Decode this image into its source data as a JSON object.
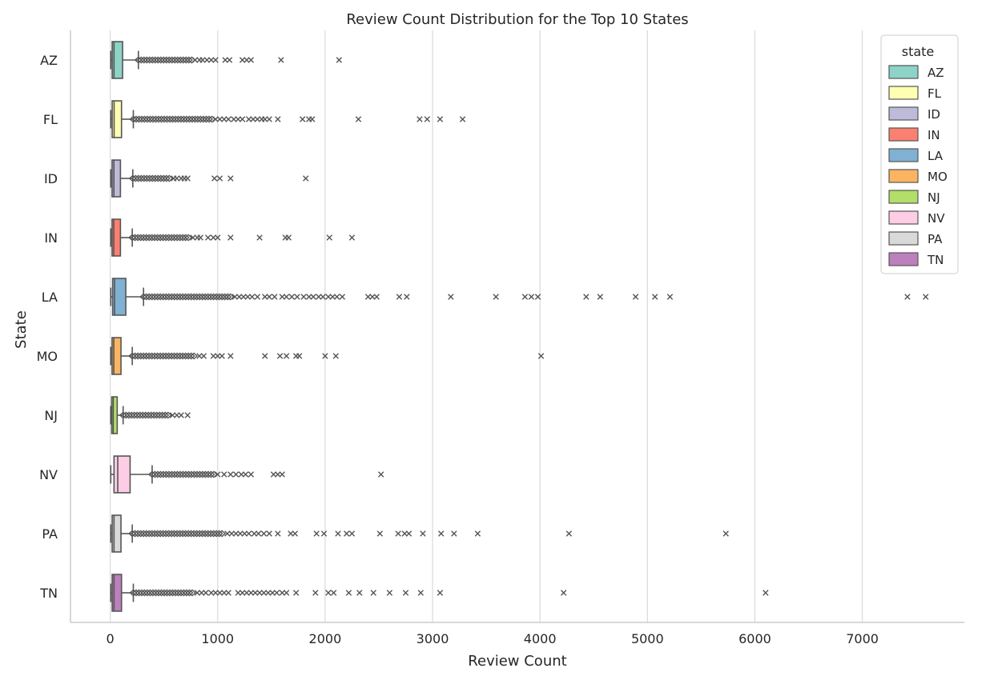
{
  "chart_data": {
    "type": "boxplot",
    "orientation": "horizontal",
    "title": "Review Count Distribution for the Top 10 States",
    "xlabel": "Review Count",
    "ylabel": "State",
    "xlim": [
      -370,
      7950
    ],
    "xticks": [
      0,
      1000,
      2000,
      3000,
      4000,
      5000,
      6000,
      7000
    ],
    "grid": "vertical",
    "legend": {
      "title": "state",
      "placement": "top-right"
    },
    "series": [
      {
        "name": "AZ",
        "color": "#8dd3c7",
        "q1": 18,
        "median": 35,
        "q3": 115,
        "whisker_low": 5,
        "whisker_high": 262,
        "outlier_dense_from": 262,
        "outlier_dense_to": 760,
        "outliers": [
          790,
          830,
          860,
          900,
          940,
          980,
          1070,
          1110,
          1230,
          1270,
          1310,
          1590,
          2130
        ]
      },
      {
        "name": "FL",
        "color": "#ffffb3",
        "q1": 18,
        "median": 36,
        "q3": 105,
        "whisker_low": 5,
        "whisker_high": 215,
        "outlier_dense_from": 215,
        "outlier_dense_to": 950,
        "outliers": [
          980,
          1020,
          1060,
          1100,
          1150,
          1190,
          1230,
          1290,
          1330,
          1370,
          1410,
          1440,
          1480,
          1560,
          1790,
          1850,
          1880,
          2310,
          2880,
          2950,
          3070,
          3280
        ]
      },
      {
        "name": "ID",
        "color": "#bebada",
        "q1": 17,
        "median": 34,
        "q3": 95,
        "whisker_low": 5,
        "whisker_high": 210,
        "outlier_dense_from": 210,
        "outlier_dense_to": 560,
        "outliers": [
          590,
          620,
          660,
          690,
          720,
          970,
          1020,
          1120,
          1820
        ]
      },
      {
        "name": "IN",
        "color": "#fb8072",
        "q1": 17,
        "median": 33,
        "q3": 95,
        "whisker_low": 5,
        "whisker_high": 205,
        "outlier_dense_from": 205,
        "outlier_dense_to": 740,
        "outliers": [
          770,
          810,
          840,
          910,
          960,
          1000,
          1120,
          1390,
          1630,
          1660,
          2040,
          2250
        ]
      },
      {
        "name": "LA",
        "color": "#80b1d3",
        "q1": 22,
        "median": 40,
        "q3": 145,
        "whisker_low": 5,
        "whisker_high": 310,
        "outlier_dense_from": 310,
        "outlier_dense_to": 1120,
        "outliers": [
          1160,
          1200,
          1240,
          1280,
          1320,
          1370,
          1440,
          1480,
          1530,
          1600,
          1640,
          1690,
          1740,
          1800,
          1850,
          1890,
          1940,
          1980,
          2030,
          2070,
          2110,
          2160,
          2400,
          2440,
          2480,
          2690,
          2760,
          3170,
          3590,
          3860,
          3920,
          3980,
          4430,
          4560,
          4890,
          5070,
          5210,
          7420,
          7590
        ]
      },
      {
        "name": "MO",
        "color": "#fdb462",
        "q1": 17,
        "median": 33,
        "q3": 100,
        "whisker_low": 5,
        "whisker_high": 205,
        "outlier_dense_from": 205,
        "outlier_dense_to": 800,
        "outliers": [
          830,
          870,
          960,
          1000,
          1040,
          1120,
          1440,
          1580,
          1640,
          1730,
          1760,
          2000,
          2100,
          4010
        ]
      },
      {
        "name": "NJ",
        "color": "#b3de69",
        "q1": 14,
        "median": 28,
        "q3": 65,
        "whisker_low": 5,
        "whisker_high": 120,
        "outlier_dense_from": 120,
        "outlier_dense_to": 560,
        "outliers": [
          580,
          620,
          660,
          720
        ]
      },
      {
        "name": "NV",
        "color": "#fccde5",
        "q1": 35,
        "median": 70,
        "q3": 185,
        "whisker_low": 5,
        "whisker_high": 390,
        "outlier_dense_from": 390,
        "outlier_dense_to": 970,
        "outliers": [
          1000,
          1060,
          1120,
          1170,
          1220,
          1260,
          1310,
          1520,
          1560,
          1600,
          2520
        ]
      },
      {
        "name": "PA",
        "color": "#d9d9d9",
        "q1": 18,
        "median": 35,
        "q3": 100,
        "whisker_low": 5,
        "whisker_high": 205,
        "outlier_dense_from": 205,
        "outlier_dense_to": 1050,
        "outliers": [
          1090,
          1130,
          1170,
          1210,
          1250,
          1290,
          1340,
          1380,
          1430,
          1480,
          1560,
          1680,
          1720,
          1920,
          1990,
          2120,
          2200,
          2250,
          2510,
          2680,
          2740,
          2780,
          2910,
          3080,
          3200,
          3420,
          4270,
          5730
        ]
      },
      {
        "name": "TN",
        "color": "#bc80bd",
        "q1": 18,
        "median": 35,
        "q3": 105,
        "whisker_low": 5,
        "whisker_high": 215,
        "outlier_dense_from": 215,
        "outlier_dense_to": 780,
        "outliers": [
          810,
          850,
          890,
          940,
          980,
          1020,
          1060,
          1100,
          1190,
          1230,
          1270,
          1310,
          1350,
          1390,
          1430,
          1470,
          1510,
          1550,
          1600,
          1640,
          1730,
          1910,
          2030,
          2080,
          2220,
          2320,
          2450,
          2600,
          2750,
          2890,
          3070,
          4220,
          6100
        ]
      }
    ]
  }
}
